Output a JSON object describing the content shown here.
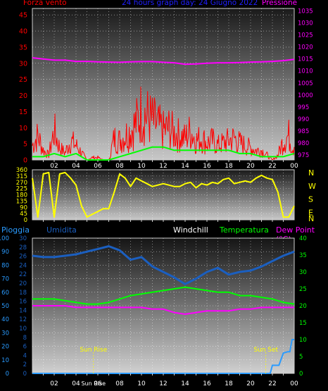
{
  "header": {
    "left_label": "Forza vento",
    "title": "24 hours graph day: 24 Giugno 2022",
    "right_label": "Pressione"
  },
  "colors": {
    "wind": "#ff0000",
    "gust": "#00ff00",
    "pressure": "#ff00ff",
    "direction": "#ffff00",
    "rain": "#2a9bff",
    "humidity": "#1b5fc0",
    "temperature": "#00ff00",
    "dewpoint": "#ff00ff",
    "left_axis_top": "#ff0000",
    "right_axis_top": "#ff00ff",
    "grid": "#ffffff",
    "hours": "#ffffff",
    "sun_markers": "#ffff00"
  },
  "chart_data": [
    {
      "type": "line",
      "panel": "wind_pressure",
      "x_hours": [
        2,
        4,
        6,
        8,
        10,
        12,
        14,
        16,
        18,
        20,
        22,
        0
      ],
      "x_labels": [
        "02",
        "04",
        "06",
        "08",
        "10",
        "12",
        "14",
        "16",
        "18",
        "20",
        "22",
        "00"
      ],
      "y_left_ticks": [
        0,
        5,
        10,
        15,
        20,
        25,
        30,
        35,
        40,
        45
      ],
      "y_right_ticks": [
        975,
        980,
        985,
        990,
        995,
        1000,
        1005,
        1010,
        1015,
        1020,
        1025,
        1030,
        1035
      ],
      "ylim_left": [
        0,
        47
      ],
      "ylim_right": [
        973,
        1036
      ],
      "grid": true,
      "series": [
        {
          "name": "Forza vento",
          "axis": "left",
          "x": [
            0,
            0.5,
            1,
            1.5,
            2,
            2.5,
            3,
            3.5,
            4,
            4.5,
            5,
            5.5,
            6,
            6.5,
            7,
            7.5,
            8,
            8.5,
            9,
            9.5,
            10,
            10.5,
            11,
            11.5,
            12,
            12.5,
            13,
            13.5,
            14,
            14.5,
            15,
            15.5,
            16,
            16.5,
            17,
            17.5,
            18,
            18.5,
            19,
            19.5,
            20,
            20.5,
            21,
            21.5,
            22,
            22.5,
            23,
            23.5,
            24
          ],
          "values": [
            6,
            10,
            4,
            2,
            12,
            5,
            3,
            8,
            6,
            3,
            0,
            1,
            1,
            0,
            0,
            9,
            8,
            10,
            12,
            15,
            20,
            18,
            16,
            14,
            12,
            13,
            11,
            10,
            9,
            12,
            8,
            9,
            7,
            8,
            6,
            7,
            8,
            9,
            7,
            6,
            5,
            4,
            4,
            2,
            0,
            2,
            8,
            10,
            4
          ]
        },
        {
          "name": "Raffica",
          "axis": "left",
          "x": [
            0,
            1,
            2,
            3,
            4,
            5,
            6,
            7,
            8,
            9,
            10,
            11,
            12,
            13,
            14,
            15,
            16,
            17,
            18,
            19,
            20,
            21,
            22,
            23,
            24
          ],
          "values": [
            1,
            1,
            2,
            1,
            2,
            0,
            0,
            0,
            1,
            2,
            3,
            4,
            4,
            3,
            3,
            3,
            3,
            3,
            3,
            2,
            2,
            1,
            1,
            1,
            2
          ]
        },
        {
          "name": "Pressione",
          "axis": "right",
          "x": [
            0,
            1,
            2,
            3,
            4,
            5,
            6,
            7,
            8,
            9,
            10,
            11,
            12,
            13,
            14,
            15,
            16,
            17,
            18,
            19,
            20,
            21,
            22,
            23,
            24
          ],
          "values": [
            1015.5,
            1015,
            1014.5,
            1014.5,
            1014,
            1014,
            1013.8,
            1013.7,
            1013.6,
            1013.8,
            1013.9,
            1013.9,
            1013.6,
            1013.4,
            1012.8,
            1012.9,
            1013.2,
            1013.4,
            1013.4,
            1013.5,
            1013.7,
            1013.8,
            1014,
            1014.3,
            1014.8
          ]
        }
      ]
    },
    {
      "type": "scatter",
      "panel": "wind_direction",
      "y_ticks": [
        0,
        45,
        90,
        135,
        180,
        225,
        270,
        315,
        360
      ],
      "ylim": [
        0,
        360
      ],
      "compass_labels": [
        "N",
        "W",
        "S",
        "E",
        "N"
      ],
      "grid": true,
      "x": [
        0,
        0.5,
        1,
        1.5,
        2,
        2.5,
        3,
        3.5,
        4,
        4.5,
        5,
        5.5,
        6,
        6.5,
        7,
        7.5,
        8,
        8.5,
        9,
        9.5,
        10,
        10.5,
        11,
        11.5,
        12,
        12.5,
        13,
        13.5,
        14,
        14.5,
        15,
        15.5,
        16,
        16.5,
        17,
        17.5,
        18,
        18.5,
        19,
        19.5,
        20,
        20.5,
        21,
        21.5,
        22,
        22.5,
        23,
        23.5,
        24
      ],
      "values": [
        300,
        20,
        330,
        340,
        20,
        330,
        340,
        300,
        250,
        100,
        20,
        40,
        60,
        80,
        80,
        200,
        330,
        300,
        240,
        300,
        280,
        260,
        240,
        250,
        260,
        250,
        240,
        240,
        260,
        270,
        230,
        260,
        250,
        270,
        260,
        290,
        300,
        260,
        270,
        280,
        270,
        300,
        320,
        300,
        290,
        200,
        20,
        20,
        100
      ]
    },
    {
      "type": "line",
      "panel": "temperature_humidity_rain",
      "legend": [
        "Pioggia",
        "Umidita",
        "Windchill",
        "Temperatura",
        "Dew Point (°C)"
      ],
      "rain_ticks": [
        0,
        10,
        20,
        30,
        40,
        50,
        60,
        70,
        80,
        90,
        100
      ],
      "humidity_ticks": [
        0,
        2,
        4,
        6,
        8,
        10,
        12,
        14,
        16,
        18,
        20,
        22,
        24,
        26,
        28,
        30
      ],
      "temp_ticks": [
        0,
        5,
        10,
        15,
        20,
        25,
        30,
        35,
        40
      ],
      "ylim_rain": [
        0,
        100
      ],
      "ylim_humidity": [
        0,
        30
      ],
      "ylim_temp": [
        0,
        40
      ],
      "sun_rise_label": "Sun Rise",
      "sun_set_label": "Sun Set",
      "sun_rise_hour": 5.6,
      "sun_set_hour": 21.4,
      "grid": true,
      "series": [
        {
          "name": "Umidita",
          "axis": "rain",
          "x": [
            0,
            1,
            2,
            3,
            4,
            5,
            6,
            7,
            8,
            9,
            10,
            11,
            12,
            13,
            14,
            15,
            16,
            17,
            18,
            19,
            20,
            21,
            22,
            23,
            24
          ],
          "values": [
            87,
            86,
            86,
            87,
            88,
            90,
            92,
            94,
            91,
            84,
            86,
            79,
            75,
            71,
            66,
            70,
            75,
            78,
            73,
            75,
            76,
            79,
            83,
            87,
            90
          ]
        },
        {
          "name": "Temperatura",
          "axis": "temp",
          "x": [
            0,
            1,
            2,
            3,
            4,
            5,
            6,
            7,
            8,
            9,
            10,
            11,
            12,
            13,
            14,
            15,
            16,
            17,
            18,
            19,
            20,
            21,
            22,
            23,
            24
          ],
          "values": [
            22,
            22,
            22,
            21.5,
            21,
            20.5,
            20.5,
            21,
            22,
            23,
            23.5,
            24,
            24.5,
            25,
            25.5,
            25,
            24.5,
            24,
            24,
            23,
            23,
            22.5,
            22,
            21,
            20.5
          ]
        },
        {
          "name": "Dew Point (°C)",
          "axis": "temp",
          "x": [
            0,
            1,
            2,
            3,
            4,
            5,
            6,
            7,
            8,
            9,
            10,
            11,
            12,
            13,
            14,
            15,
            16,
            17,
            18,
            19,
            20,
            21,
            22,
            23,
            24
          ],
          "values": [
            20,
            20,
            20,
            20,
            19.5,
            19.5,
            19.5,
            19.5,
            19.5,
            19.5,
            19.5,
            19,
            19,
            18,
            17.5,
            18,
            18.5,
            18.5,
            18.5,
            19,
            19,
            19.5,
            19.5,
            19.5,
            19.5
          ]
        },
        {
          "name": "Pioggia",
          "axis": "rain",
          "x": [
            0,
            2,
            4,
            6,
            8,
            10,
            12,
            14,
            16,
            18,
            20,
            21.8,
            22,
            22.6,
            23,
            23.4,
            23.6,
            23.8,
            24
          ],
          "values": [
            0,
            0,
            0,
            0,
            0,
            0,
            0,
            0,
            0,
            0,
            0,
            0,
            6,
            6,
            15,
            16,
            16,
            25,
            25
          ]
        }
      ]
    }
  ]
}
